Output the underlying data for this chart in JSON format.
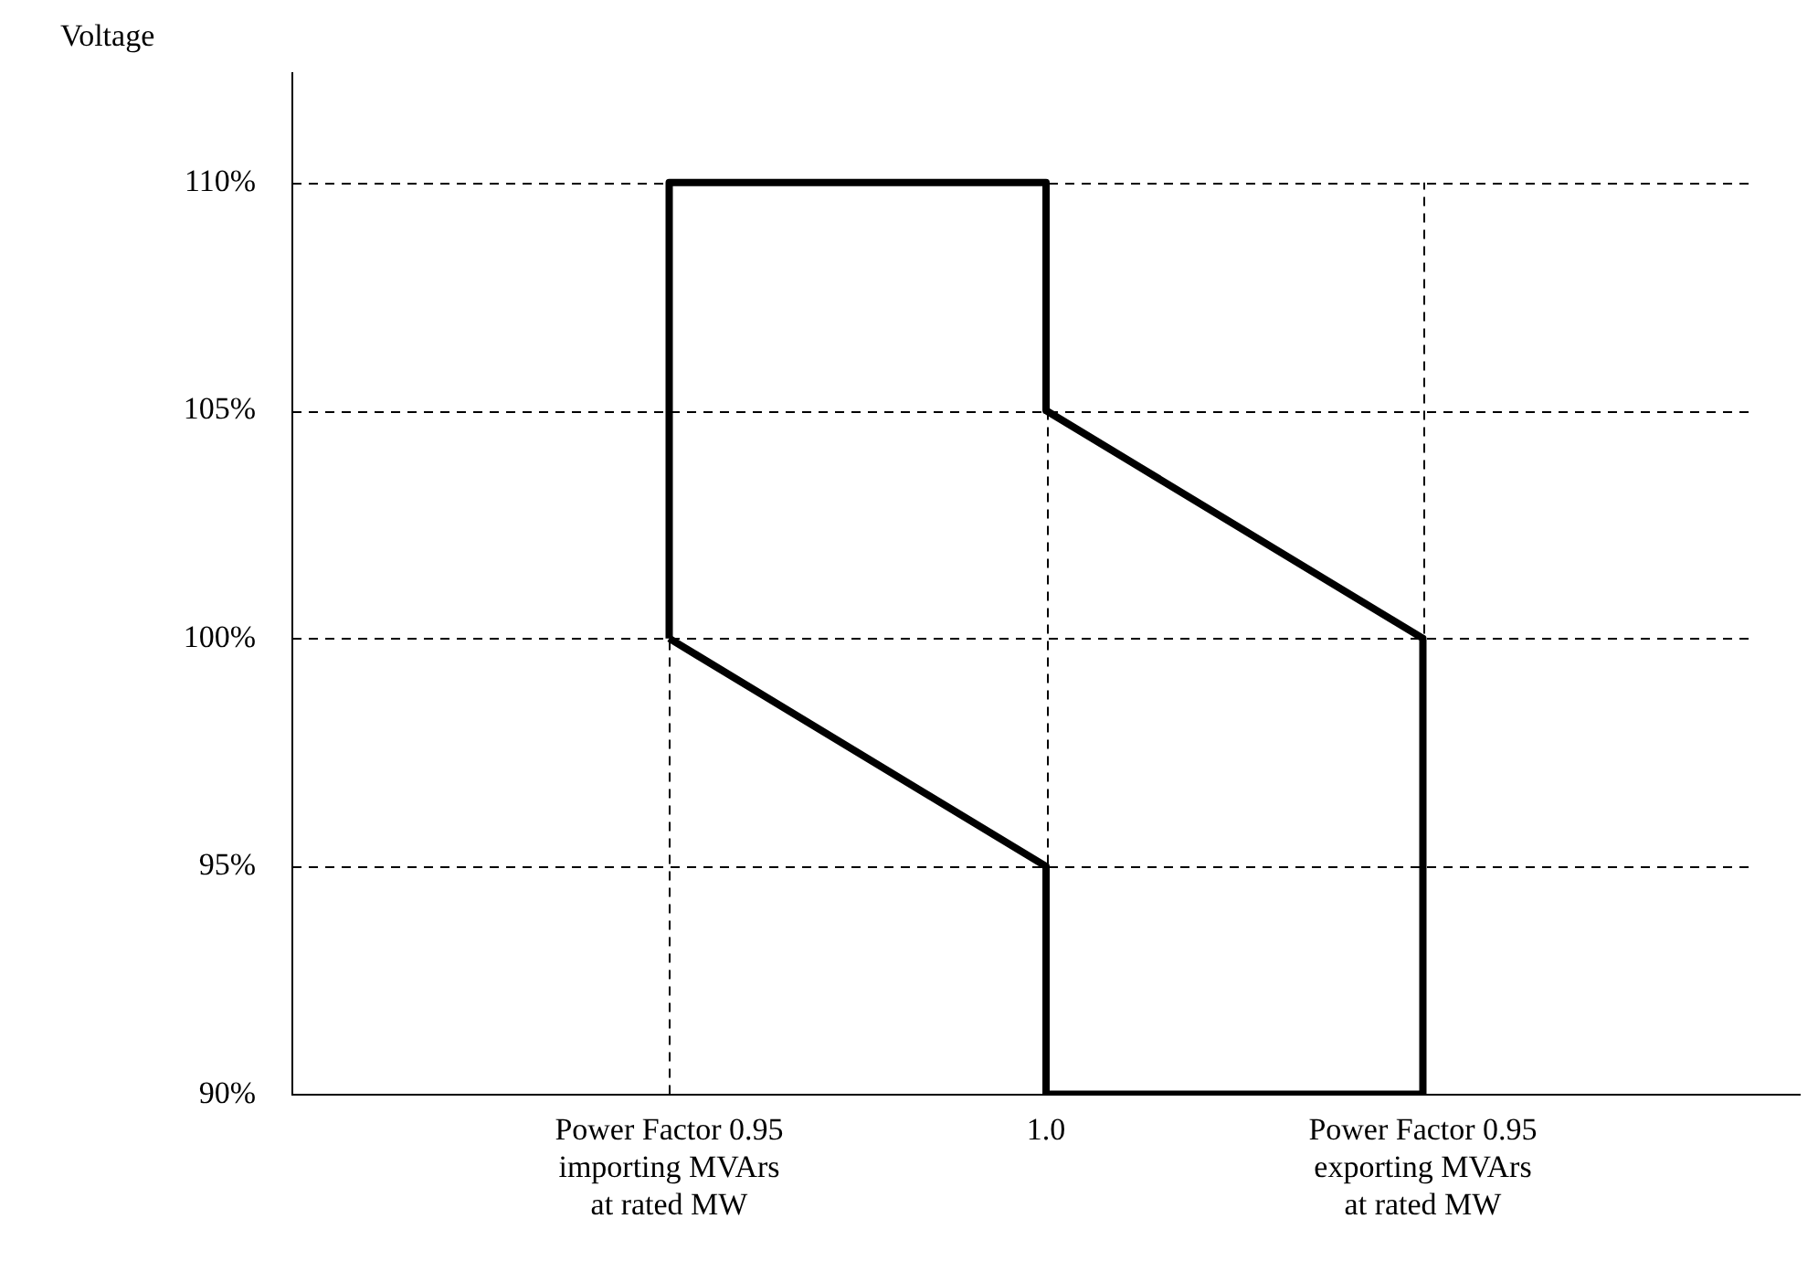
{
  "chart_data": {
    "type": "line",
    "ylabel": "Voltage",
    "categories": [
      null,
      "Power Factor 0.95\nimporting MVArs\nat rated MW",
      "1.0",
      "Power Factor 0.95\nexporting MVArs\nat rated MW",
      null
    ],
    "series": [
      {
        "color": "#000000",
        "x": [
          "Power Factor 0.95\nimporting MVArs\nat rated MW",
          "Power Factor 0.95\nimporting MVArs\nat rated MW",
          "1.0",
          "1.0",
          "Power Factor 0.95\nexporting MVArs\nat rated MW",
          "Power Factor 0.95\nexporting MVArs\nat rated MW"
        ],
        "values": [
          100,
          110,
          110,
          105,
          100,
          90
        ]
      },
      {
        "color": "#000000",
        "x": [
          "Power Factor 0.95\nimporting MVArs\nat rated MW",
          "1.0",
          "1.0",
          "Power Factor 0.95\nexporting MVArs\nat rated MW"
        ],
        "values": [
          100,
          95,
          90,
          90
        ]
      }
    ],
    "ylim": [
      90,
      112.4
    ],
    "yticks": [
      {
        "value": 90,
        "label": "90%"
      },
      {
        "value": 95,
        "label": "95%"
      },
      {
        "value": 100,
        "label": "100%"
      },
      {
        "value": 105,
        "label": "105%"
      },
      {
        "value": 110,
        "label": "110%"
      }
    ],
    "grid": true,
    "legend": false,
    "marker": "none",
    "line_style": "solid"
  }
}
